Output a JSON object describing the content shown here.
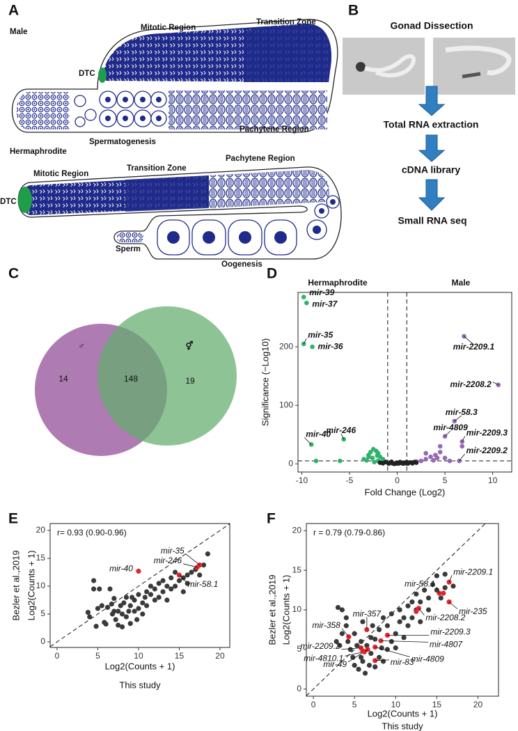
{
  "panel_labels": [
    "A",
    "B",
    "C",
    "D",
    "E",
    "F"
  ],
  "diagram_a": {
    "male": {
      "title": "Male",
      "labels": [
        "Mitotic Region",
        "Transition Zone",
        "DTC",
        "Spermatogenesis",
        "Pachytene Region"
      ]
    },
    "hermaphrodite": {
      "title": "Hermaphrodite",
      "labels": [
        "Mitotic Region",
        "Transition Zone",
        "Pachytene Region",
        "DTC",
        "Sperm",
        "Oogenesis"
      ]
    }
  },
  "flow_b": {
    "title": "Gonad Dissection",
    "steps": [
      "Total RNA extraction",
      "cDNA library",
      "Small RNA seq"
    ]
  },
  "chart_data": [
    {
      "type": "venn",
      "sets": [
        {
          "name": "♂",
          "value": 14,
          "color": "#a064a6"
        },
        {
          "name": "⚥",
          "value": 19,
          "color": "#63ad6c"
        }
      ],
      "intersection": 148
    },
    {
      "type": "scatter",
      "xlabel": "Fold Change (Log2)",
      "ylabel": "Significance (−Log10)",
      "xlim": [
        -10.4,
        12
      ],
      "ylim": [
        -14,
        293
      ],
      "xticks": [
        -10,
        -5,
        0,
        5,
        10
      ],
      "yticks": [
        0,
        100,
        200
      ],
      "thresholds": {
        "x": [
          -1,
          1
        ],
        "y": 5
      },
      "series": [
        {
          "name": "Hermaphrodite",
          "color": "#2fb36b",
          "x": [
            -9.8,
            -9.5,
            -9.8,
            -8.9,
            -9,
            -5.6,
            -6,
            -8.5,
            -3.5,
            -3,
            -2.8,
            -2.5,
            -2.2,
            -2,
            -1.8,
            -2.6,
            -3.2,
            -1.5,
            -2,
            -1.3,
            -2.4,
            -3,
            -2.1
          ],
          "values": [
            285,
            275,
            205,
            200,
            33,
            42,
            5,
            5,
            8,
            15,
            20,
            25,
            22,
            18,
            12,
            10,
            6,
            8,
            5,
            4,
            3,
            12,
            14
          ],
          "labels": [
            "mir-39",
            "mir-37",
            "mir-35",
            "mir-36",
            "mir-40",
            "mir-246",
            null,
            null,
            null,
            null,
            null,
            null,
            null,
            null,
            null,
            null,
            null,
            null,
            null,
            null,
            null,
            null,
            null
          ]
        },
        {
          "name": "Male",
          "color": "#9569b3",
          "x": [
            7,
            10.6,
            6,
            5,
            6.8,
            6.5,
            6.8,
            4.5,
            3,
            3.5,
            4,
            4.5,
            5,
            2.5,
            3.8,
            5.5,
            2,
            4.2,
            3
          ],
          "values": [
            218,
            135,
            73,
            47,
            38,
            5,
            30,
            30,
            8,
            12,
            15,
            20,
            10,
            5,
            6,
            5,
            4,
            10,
            18
          ],
          "labels": [
            "mir-2209.1",
            "mir-2208.2",
            "mir-58.3",
            "mir-4809",
            "mir-2209.3",
            "mir-2209.2",
            null,
            null,
            null,
            null,
            null,
            null,
            null,
            null,
            null,
            null,
            null,
            null,
            null
          ]
        },
        {
          "color": "#222222",
          "x": [
            -1.8,
            -1.5,
            -1.2,
            -0.9,
            -0.7,
            -0.5,
            -0.3,
            -0.1,
            0,
            0.2,
            0.4,
            0.6,
            0.8,
            1,
            1.2,
            1.4,
            1.6,
            1.8,
            2,
            -0.6,
            0.3,
            1.1
          ],
          "values": [
            2,
            1,
            3,
            0.5,
            2,
            1,
            0,
            1.5,
            0.5,
            1,
            2,
            0.5,
            1,
            3,
            1.5,
            2.5,
            1,
            3,
            2,
            3.5,
            3,
            0.5
          ]
        }
      ]
    },
    {
      "type": "scatter",
      "annotation": "r= 0.93 (0.90-0.96)",
      "xlabel": "Log2(Counts + 1)",
      "x_caption": "This study",
      "ylabel": "Log2(Counts + 1)",
      "y_caption": "Bezler et al.,2019",
      "identity_line": true,
      "xlim": [
        -0.85,
        21.2
      ],
      "ylim": [
        -1,
        21.25
      ],
      "xticks": [
        0,
        5,
        10,
        15,
        20
      ],
      "yticks": [
        0,
        5,
        10,
        15,
        20
      ],
      "series": [
        {
          "color": "#3a3a3a",
          "x": [
            4,
            4.5,
            4.5,
            4.8,
            5,
            5.5,
            5.8,
            6,
            6.2,
            6.5,
            6.8,
            7,
            7.2,
            7.5,
            7.5,
            7.8,
            8,
            8,
            8.2,
            8.5,
            8.5,
            8.8,
            9,
            9,
            9.2,
            9.5,
            9.5,
            9.8,
            10,
            10,
            10.5,
            10.5,
            10.8,
            11,
            11,
            11.5,
            11.5,
            12,
            12,
            12.5,
            12.5,
            13,
            13,
            13.5,
            13.5,
            14,
            14,
            14.5,
            14.5,
            15,
            15.5,
            15.5,
            16,
            16,
            16.5,
            17,
            17.5,
            18,
            18.5,
            6.7,
            7,
            5.2,
            3.8
          ],
          "values": [
            4.5,
            11,
            9.5,
            2.8,
            6,
            6.5,
            3.5,
            3.2,
            6.2,
            9.5,
            5,
            5.5,
            4,
            3,
            5.5,
            6.5,
            5,
            2.7,
            7,
            8,
            4.5,
            5.5,
            6.5,
            3.3,
            8,
            7.5,
            5.5,
            4,
            6,
            8.5,
            7,
            5,
            8,
            9,
            6.5,
            8.5,
            10,
            7.5,
            9.5,
            10.5,
            8,
            9,
            11,
            10,
            7.5,
            11.5,
            9.5,
            10,
            12.5,
            11,
            11.5,
            9,
            12,
            10.5,
            12.5,
            13,
            12,
            13.8,
            15.8,
            6.8,
            7.8,
            9.5,
            5.3
          ]
        },
        {
          "color": "#e3242b",
          "x": [
            10,
            17.5,
            17.2,
            15
          ],
          "values": [
            12.7,
            13.8,
            13.4,
            12
          ],
          "labels": [
            "mir-40",
            "mir-35",
            "mir-246",
            "mir-58.1"
          ]
        }
      ]
    },
    {
      "type": "scatter",
      "annotation": "r = 0.79 (0.79-0.86)",
      "xlabel": "Log2(Counts + 1)",
      "x_caption": "This study",
      "ylabel": "Log2(Counts + 1)",
      "y_caption": "Bezler et al.,2019",
      "identity_line": true,
      "xlim": [
        -0.85,
        22.5
      ],
      "ylim": [
        -0.9,
        20.9
      ],
      "xticks": [
        0,
        5,
        10,
        15,
        20
      ],
      "yticks": [
        0,
        5,
        10,
        15,
        20
      ],
      "series": [
        {
          "color": "#3a3a3a",
          "x": [
            3,
            3.5,
            3.2,
            4,
            4.2,
            4.5,
            4.8,
            5,
            5,
            5.3,
            5.5,
            5.8,
            5.8,
            6,
            6,
            6.3,
            6.5,
            6.8,
            7,
            7,
            7.2,
            7.5,
            7.5,
            8,
            8,
            8.3,
            8.5,
            8.5,
            9,
            9,
            9.5,
            9.5,
            10,
            10,
            10.5,
            10.5,
            11,
            11,
            11.5,
            11.5,
            12,
            12,
            12.5,
            12.5,
            13,
            13,
            13.5,
            14,
            14,
            14.5,
            15,
            15,
            15.5,
            16,
            16,
            17,
            4,
            2.8,
            3.5
          ],
          "values": [
            10.3,
            10,
            5.5,
            8,
            6,
            5,
            4,
            3,
            7,
            5.5,
            2.5,
            6,
            4,
            3.5,
            8.5,
            2,
            5.5,
            3,
            6.5,
            4.5,
            8,
            6.3,
            2.8,
            7.5,
            4,
            5.2,
            9,
            3.5,
            5,
            8,
            6,
            9.5,
            7,
            5.2,
            8.5,
            10,
            9,
            6.5,
            10.5,
            8,
            11,
            9,
            10,
            12,
            11,
            8.5,
            12.5,
            11.5,
            10,
            13.2,
            12.5,
            14.3,
            11.5,
            12.8,
            14.5,
            13,
            9,
            6,
            7
          ]
        },
        {
          "color": "#e3242b",
          "x": [
            16.5,
            15.3,
            16.5,
            12.8,
            6.5,
            4.3,
            9,
            8.2,
            7.5,
            7.5,
            5.8,
            6.2,
            6.6,
            15.8,
            6,
            12.5
          ],
          "values": [
            13.5,
            12.1,
            11,
            10.2,
            7.5,
            6.6,
            6.8,
            6.1,
            5.3,
            3.6,
            5.2,
            4.7,
            5,
            12.1,
            4.8,
            9.8
          ],
          "labels": [
            "mir-2209.1",
            "mir-58.1",
            "mir-235",
            "mir-2208.2",
            "mir-357",
            "mir-358",
            "mir-2209.3",
            "mir-4807",
            "mir-4809",
            "mir-83",
            "mir-2209.2",
            "mir-4810.1",
            "mir-49",
            null,
            null,
            null
          ]
        }
      ]
    }
  ]
}
